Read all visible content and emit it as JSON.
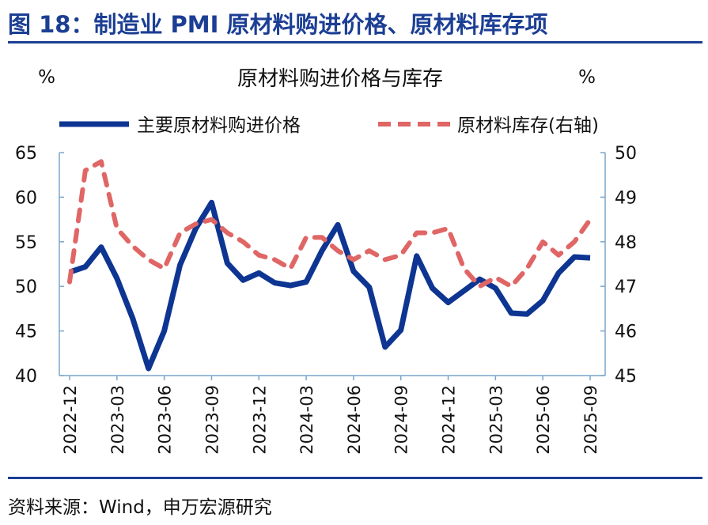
{
  "figure_title": "图 18：制造业 PMI 原材料购进价格、原材料库存项",
  "source": "资料来源：Wind，申万宏源研究",
  "chart_data": {
    "type": "line",
    "title": "原材料购进价格与库存",
    "ylabel_left": "%",
    "ylabel_right": "%",
    "ylim_left": [
      40,
      65
    ],
    "ylim_right": [
      45,
      50
    ],
    "yticks_left": [
      40,
      45,
      50,
      55,
      60,
      65
    ],
    "yticks_right": [
      45,
      46,
      47,
      48,
      49,
      50
    ],
    "grid": false,
    "legend_position": "top",
    "x": [
      "2022-12",
      "2023-01",
      "2023-02",
      "2023-03",
      "2023-04",
      "2023-05",
      "2023-06",
      "2023-07",
      "2023-08",
      "2023-09",
      "2023-10",
      "2023-11",
      "2023-12",
      "2024-01",
      "2024-02",
      "2024-03",
      "2024-04",
      "2024-05",
      "2024-06",
      "2024-07",
      "2024-08",
      "2024-09",
      "2024-10",
      "2024-11",
      "2024-12",
      "2025-01",
      "2025-02",
      "2025-03",
      "2025-04",
      "2025-05",
      "2025-06",
      "2025-07",
      "2025-08",
      "2025-09"
    ],
    "xticks": [
      "2022-12",
      "2023-03",
      "2023-06",
      "2023-09",
      "2023-12",
      "2024-03",
      "2024-06",
      "2024-09",
      "2024-12",
      "2025-03",
      "2025-06",
      "2025-09"
    ],
    "series": [
      {
        "name": "主要原材料购进价格",
        "axis": "left",
        "color": "#0d3591",
        "style": "solid",
        "values": [
          51.6,
          52.2,
          54.4,
          50.9,
          46.4,
          40.8,
          45.0,
          52.4,
          56.5,
          59.4,
          52.6,
          50.7,
          51.5,
          50.4,
          50.1,
          50.5,
          54.0,
          56.9,
          51.7,
          49.9,
          43.2,
          45.1,
          53.4,
          49.8,
          48.2,
          49.5,
          50.8,
          49.8,
          47.0,
          46.9,
          48.4,
          51.5,
          53.3,
          53.2
        ]
      },
      {
        "name": "原材料库存(右轴)",
        "axis": "right",
        "color": "#e06666",
        "style": "dashed",
        "values": [
          47.1,
          49.6,
          49.8,
          48.3,
          47.9,
          47.6,
          47.4,
          48.2,
          48.4,
          48.5,
          48.2,
          48.0,
          47.7,
          47.6,
          47.4,
          48.1,
          48.1,
          47.8,
          47.6,
          47.8,
          47.6,
          47.7,
          48.2,
          48.2,
          48.3,
          47.4,
          47.0,
          47.2,
          47.0,
          47.4,
          48.0,
          47.7,
          48.0,
          48.5
        ]
      }
    ]
  }
}
